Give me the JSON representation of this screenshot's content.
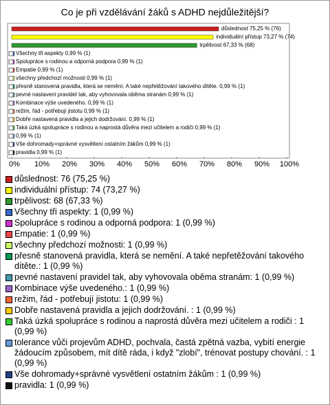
{
  "chart_data": {
    "type": "hbar",
    "title": "Co je při vzdělávání žáků s ADHD nejdůležitější?",
    "categories": [
      "důslednost",
      "individuální přístup",
      "trpělivost",
      "Všechny tři aspekty",
      "Spolupráce s rodinou a odporná podpora",
      "Empatie",
      "všechny předchozí možnosti",
      "přesně stanovená pravidla, která se nemění. A také nepřetěžování takového dítěte.",
      "pevné nastavení pravidel tak, aby vyhovovala oběma stranám",
      "Kombinace výše uvedeného.",
      "režim, řád - potřebují jistotu",
      "Dobře nastavená pravidla a jejich dodržování. ",
      "Taká úzká spolupráce s rodinou a naprostá důvěra mezi učitelem a rodiči ",
      "tolerance vůči projevům ADHD, pochvala, častá zpětná vazba, vybití energie žádoucím způsobem, mít dítě ráda, i když \"zlobí\", trénovat postupy chování. ",
      "Vše dohromady+správné vysvětlení ostatním žákům ",
      "pravidla"
    ],
    "values": [
      75.25,
      73.27,
      67.33,
      0.99,
      0.99,
      0.99,
      0.99,
      0.99,
      0.99,
      0.99,
      0.99,
      0.99,
      0.99,
      0.99,
      0.99,
      0.99
    ],
    "value_labels": [
      "75,25 % (76)",
      "73,27 % (74)",
      "67,33 % (68)",
      "0,99 % (1)",
      "0,99 % (1)",
      "0,99 % (1)",
      "0,99 % (1)",
      "0,99 % (1)",
      "0,99 % (1)",
      "0,99 % (1)",
      "0,99 % (1)",
      "0,99 % (1)",
      "0,99 % (1)",
      "0,99 % (1)",
      "0,99 % (1)",
      "0,99 % (1)"
    ],
    "bar_labeled": [
      true,
      true,
      true,
      true,
      true,
      true,
      true,
      true,
      true,
      true,
      true,
      true,
      true,
      false,
      true,
      true
    ],
    "legend_labels": [
      "důslednost: 76 (75,25 %)",
      "individuální přístup: 74 (73,27 %)",
      "trpělivost: 68 (67,33 %)",
      "Všechny tři aspekty: 1 (0,99 %)",
      "Spolupráce s rodinou a odporná podpora: 1 (0,99 %)",
      "Empatie: 1 (0,99 %)",
      "všechny předchozí možnosti: 1 (0,99 %)",
      "přesně stanovená pravidla, která se nemění. A také nepřetěžování takového dítěte.: 1 (0,99 %)",
      "pevné nastavení pravidel tak, aby vyhovovala oběma stranám: 1 (0,99 %)",
      "Kombinace výše uvedeného.: 1 (0,99 %)",
      "režim, řád - potřebují jistotu: 1 (0,99 %)",
      "Dobře nastavená pravidla a jejich dodržování. : 1 (0,99 %)",
      "Taká úzká spolupráce s rodinou a naprostá důvěra mezi učitelem a rodiči : 1 (0,99 %)",
      "tolerance vůči projevům ADHD, pochvala, častá zpětná vazba, vybití energie žádoucím způsobem, mít dítě ráda, i když \"zlobí\", trénovat postupy chování. : 1 (0,99 %)",
      "Vše dohromady+správné vysvětlení ostatním žákům : 1 (0,99 %)",
      "pravidla: 1 (0,99 %)"
    ],
    "colors": [
      "#cc1f1f",
      "#ffff00",
      "#2e9a2e",
      "#3a66cc",
      "#cc33cc",
      "#ee4444",
      "#ccff66",
      "#009955",
      "#4499aa",
      "#9966cc",
      "#ff6633",
      "#ffcc00",
      "#33cc33",
      "#6699dd",
      "#224488",
      "#111111"
    ],
    "xlim": [
      0,
      100
    ],
    "xticks": [
      {
        "value": 0,
        "label": "0%"
      },
      {
        "value": 10,
        "label": "10%"
      },
      {
        "value": 20,
        "label": "20%"
      },
      {
        "value": 30,
        "label": "30%"
      },
      {
        "value": 40,
        "label": "40%"
      },
      {
        "value": 50,
        "label": "50%"
      },
      {
        "value": 60,
        "label": "60%"
      },
      {
        "value": 70,
        "label": "70%"
      },
      {
        "value": 80,
        "label": "80%"
      },
      {
        "value": 90,
        "label": "90%"
      },
      {
        "value": 100,
        "label": "100%"
      }
    ],
    "grid": false
  }
}
